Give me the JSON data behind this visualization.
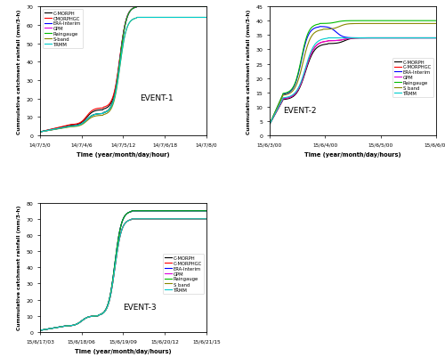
{
  "event1": {
    "title": "EVENT-1",
    "xlabel": "Time (year/month/day/hour)",
    "ylabel": "Cummulative catchment rainfall (mm/3-h)",
    "xticks": [
      "14/7/3/0",
      "14/7/4/6",
      "14/7/5/12",
      "14/7/6/18",
      "14/7/8/0"
    ],
    "ylim": [
      0,
      70
    ],
    "yticks": [
      0,
      10,
      20,
      30,
      40,
      50,
      60,
      70
    ],
    "series": [
      {
        "name": "C-MORPH",
        "color": "#000000",
        "init": 2,
        "plateau1": 14,
        "final": 70,
        "t1": 0.18,
        "t2": 0.38,
        "t3": 0.58
      },
      {
        "name": "CMORPHGC",
        "color": "#ff0000",
        "init": 2,
        "plateau1": 15,
        "final": 70,
        "t1": 0.18,
        "t2": 0.38,
        "t3": 0.58
      },
      {
        "name": "ERA-Interim",
        "color": "#0000ff",
        "init": 2,
        "plateau1": 12,
        "final": 70,
        "t1": 0.18,
        "t2": 0.38,
        "t3": 0.58
      },
      {
        "name": "GPM",
        "color": "#dd00dd",
        "init": 2,
        "plateau1": 12,
        "final": 70,
        "t1": 0.18,
        "t2": 0.38,
        "t3": 0.58
      },
      {
        "name": "Raingauge",
        "color": "#00bb00",
        "init": 2,
        "plateau1": 12,
        "final": 70,
        "t1": 0.18,
        "t2": 0.38,
        "t3": 0.58
      },
      {
        "name": "S-band",
        "color": "#888800",
        "init": 2,
        "plateau1": 11,
        "final": 64,
        "t1": 0.18,
        "t2": 0.38,
        "t3": 0.58
      },
      {
        "name": "TRMM",
        "color": "#00cccc",
        "init": 2,
        "plateau1": 12,
        "final": 64,
        "t1": 0.18,
        "t2": 0.38,
        "t3": 0.58
      }
    ]
  },
  "event2": {
    "title": "EVENT-2",
    "xlabel": "Time (year/month/day/hours)",
    "ylabel": "Cummulative catchment rainfall (mm/3-h)",
    "xticks": [
      "15/6/3/00",
      "15/6/4/00",
      "15/6/5/00",
      "15/6/6/00"
    ],
    "ylim": [
      0,
      45
    ],
    "yticks": [
      0,
      5,
      10,
      15,
      20,
      25,
      30,
      35,
      40,
      45
    ],
    "series": [
      {
        "name": "C-MORPH",
        "color": "#000000",
        "init": 4,
        "plateau1": 32,
        "final": 34,
        "t1": 0.08,
        "t2": 0.35,
        "t3": 0.55
      },
      {
        "name": "C-MORPHGC",
        "color": "#ff0000",
        "init": 4,
        "plateau1": 33,
        "final": 34,
        "t1": 0.08,
        "t2": 0.35,
        "t3": 0.55
      },
      {
        "name": "ERA-Interim",
        "color": "#0000ff",
        "init": 4,
        "plateau1": 38,
        "final": 34,
        "t1": 0.08,
        "t2": 0.3,
        "t3": 0.5
      },
      {
        "name": "GPM",
        "color": "#dd00dd",
        "init": 4,
        "plateau1": 33,
        "final": 34,
        "t1": 0.08,
        "t2": 0.35,
        "t3": 0.55
      },
      {
        "name": "Raingauge",
        "color": "#00bb00",
        "init": 4,
        "plateau1": 39,
        "final": 40,
        "t1": 0.08,
        "t2": 0.3,
        "t3": 0.5
      },
      {
        "name": "S_band",
        "color": "#888800",
        "init": 4,
        "plateau1": 37,
        "final": 39,
        "t1": 0.08,
        "t2": 0.32,
        "t3": 0.52
      },
      {
        "name": "TRMM",
        "color": "#00cccc",
        "init": 4,
        "plateau1": 34,
        "final": 34,
        "t1": 0.08,
        "t2": 0.35,
        "t3": 0.55
      }
    ]
  },
  "event3": {
    "title": "EVENT-3",
    "xlabel": "Time (year/month/day/hours)",
    "ylabel": "Cummulative catchment rainfall (mm/3-h)",
    "xticks": [
      "15/6/17/03",
      "15/6/18/06",
      "15/6/19/09",
      "15/6/20/12",
      "15/6/21/15"
    ],
    "ylim": [
      0,
      80
    ],
    "yticks": [
      0,
      10,
      20,
      30,
      40,
      50,
      60,
      70,
      80
    ],
    "series": [
      {
        "name": "C-MORPH",
        "color": "#000000",
        "init": 1,
        "plateau1": 10,
        "final": 75,
        "t1": 0.15,
        "t2": 0.35,
        "t3": 0.55
      },
      {
        "name": "C-MORPHGC",
        "color": "#ff0000",
        "init": 1,
        "plateau1": 10,
        "final": 70,
        "t1": 0.15,
        "t2": 0.35,
        "t3": 0.55
      },
      {
        "name": "ERA-Interim",
        "color": "#0000ff",
        "init": 1,
        "plateau1": 10,
        "final": 75,
        "t1": 0.15,
        "t2": 0.35,
        "t3": 0.55
      },
      {
        "name": "GPM",
        "color": "#dd00dd",
        "init": 1,
        "plateau1": 10,
        "final": 70,
        "t1": 0.15,
        "t2": 0.35,
        "t3": 0.55
      },
      {
        "name": "Raingauge",
        "color": "#00bb00",
        "init": 1,
        "plateau1": 10,
        "final": 75,
        "t1": 0.15,
        "t2": 0.35,
        "t3": 0.55
      },
      {
        "name": "S_band",
        "color": "#888800",
        "init": 1,
        "plateau1": 10,
        "final": 70,
        "t1": 0.15,
        "t2": 0.35,
        "t3": 0.55
      },
      {
        "name": "TRMM",
        "color": "#00cccc",
        "init": 1,
        "plateau1": 10,
        "final": 70,
        "t1": 0.15,
        "t2": 0.35,
        "t3": 0.55
      }
    ]
  }
}
